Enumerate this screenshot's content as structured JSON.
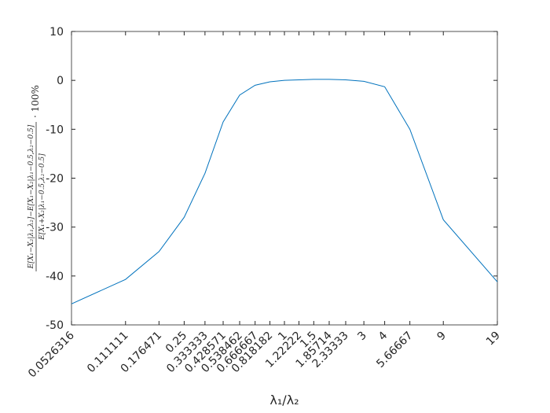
{
  "chart_data": {
    "type": "line",
    "x": [
      0.0526316,
      0.111111,
      0.176471,
      0.25,
      0.333333,
      0.428571,
      0.538462,
      0.666667,
      0.818182,
      1,
      1.22222,
      1.5,
      1.85714,
      2.33333,
      3,
      4,
      5.66667,
      9,
      19
    ],
    "y": [
      -45.7,
      -40.7,
      -35,
      -28,
      -19,
      -8.5,
      -3,
      -1,
      -0.3,
      0,
      0.1,
      0.2,
      0.2,
      0.1,
      -0.2,
      -1.3,
      -10,
      -28.5,
      -41.2
    ],
    "color": "#0072bd",
    "xscale": "log",
    "xlim": [
      0.0526316,
      19
    ],
    "xticks": [
      0.0526316,
      0.111111,
      0.176471,
      0.25,
      0.333333,
      0.428571,
      0.538462,
      0.666667,
      0.818182,
      1,
      1.22222,
      1.5,
      1.85714,
      2.33333,
      3,
      4,
      5.66667,
      9,
      19
    ],
    "ylim": [
      -50,
      10
    ],
    "yticks": [
      -50,
      -40,
      -30,
      -20,
      -10,
      0,
      10
    ],
    "xlabel": "λ₁/λ₂",
    "ylabel": {
      "numerator": "E[X₁−X₂|λ₁,λ₂]−E[X₁−X₂|λ₁−0.5,λ₂−0.5]",
      "denominator": "E[X₁+X₂|λ₁−0.5,λ₂−0.5]",
      "suffix": "· 100%"
    }
  }
}
